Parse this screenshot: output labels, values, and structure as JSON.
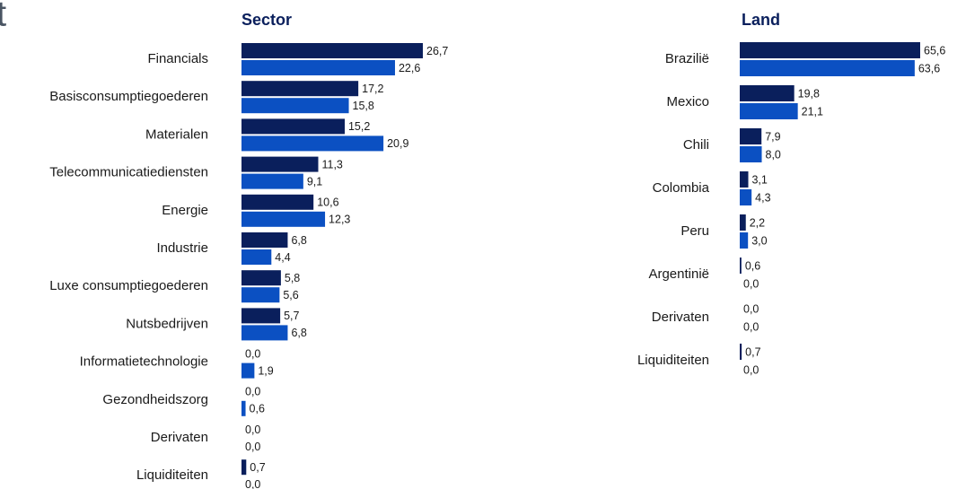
{
  "header": "t",
  "chart_data": [
    {
      "type": "bar",
      "orientation": "horizontal",
      "title": "Sector",
      "categories": [
        "Financials",
        "Basisconsumptiegoederen",
        "Materialen",
        "Telecommunicatiediensten",
        "Energie",
        "Industrie",
        "Luxe consumptiegoederen",
        "Nutsbedrijven",
        "Informatietechnologie",
        "Gezondheidszorg",
        "Derivaten",
        "Liquiditeiten"
      ],
      "series": [
        {
          "color": "#0a1f5c",
          "values": [
            26.7,
            17.2,
            15.2,
            11.3,
            10.6,
            6.8,
            5.8,
            5.7,
            0.0,
            0.0,
            0.0,
            0.7
          ],
          "value_labels": [
            "26,7",
            "17,2",
            "15,2",
            "11,3",
            "10,6",
            "6,8",
            "5,8",
            "5,7",
            "0,0",
            "0,0",
            "0,0",
            "0,7"
          ]
        },
        {
          "color": "#0b50c2",
          "values": [
            22.6,
            15.8,
            20.9,
            9.1,
            12.3,
            4.4,
            5.6,
            6.8,
            1.9,
            0.6,
            0.0,
            0.0
          ],
          "value_labels": [
            "22,6",
            "15,8",
            "20,9",
            "9,1",
            "12,3",
            "4,4",
            "5,6",
            "6,8",
            "1,9",
            "0,6",
            "0,0",
            "0,0"
          ]
        }
      ]
    },
    {
      "type": "bar",
      "orientation": "horizontal",
      "title": "Land",
      "categories": [
        "Brazilië",
        "Mexico",
        "Chili",
        "Colombia",
        "Peru",
        "Argentinië",
        "Derivaten",
        "Liquiditeiten"
      ],
      "series": [
        {
          "color": "#0a1f5c",
          "values": [
            65.6,
            19.8,
            7.9,
            3.1,
            2.2,
            0.6,
            0.0,
            0.7
          ],
          "value_labels": [
            "65,6",
            "19,8",
            "7,9",
            "3,1",
            "2,2",
            "0,6",
            "0,0",
            "0,7"
          ]
        },
        {
          "color": "#0b50c2",
          "values": [
            63.6,
            21.1,
            8.0,
            4.3,
            3.0,
            0.0,
            0.0,
            0.0
          ],
          "value_labels": [
            "63,6",
            "21,1",
            "8,0",
            "4,3",
            "3,0",
            "0,0",
            "0,0",
            "0,0"
          ]
        }
      ]
    }
  ]
}
